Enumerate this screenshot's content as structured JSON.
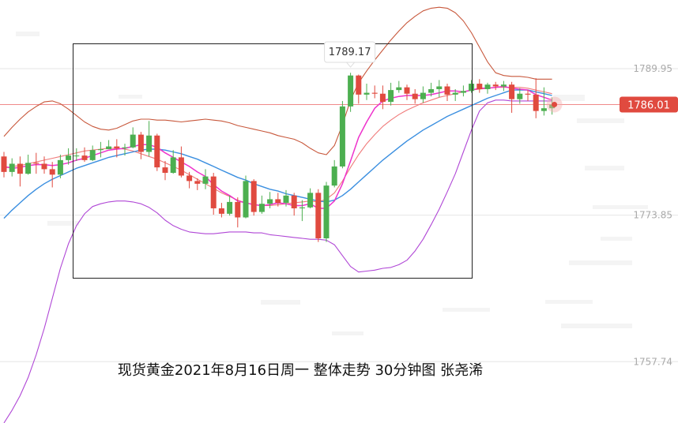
{
  "caption": "现货黄金2021年8月16日周一  整体走势  30分钟图 张尧浠",
  "chart_data": {
    "type": "candlestick",
    "title": "",
    "ylim": [
      1751.0,
      1797.5
    ],
    "yticks": [
      {
        "value": 1789.95,
        "label": "1789.95"
      },
      {
        "value": 1773.85,
        "label": "1773.85"
      },
      {
        "value": 1757.74,
        "label": "1757.74"
      }
    ],
    "current_price": {
      "value": 1786.01,
      "label": "1786.01"
    },
    "peak_label": {
      "value": 1789.17,
      "label": "1789.17",
      "candle_index": 43
    },
    "up_color": "#4caf50",
    "down_color": "#e04a3f",
    "candles": [
      [
        1780.3,
        1778.6,
        1780.8,
        1778.0
      ],
      [
        1778.6,
        1779.5,
        1780.1,
        1778.1
      ],
      [
        1779.5,
        1778.4,
        1780.3,
        1777.0
      ],
      [
        1778.4,
        1779.6,
        1780.5,
        1778.3
      ],
      [
        1779.6,
        1779.5,
        1780.7,
        1778.4
      ],
      [
        1779.5,
        1778.9,
        1780.3,
        1778.4
      ],
      [
        1778.9,
        1778.3,
        1779.7,
        1776.9
      ],
      [
        1778.3,
        1779.9,
        1780.5,
        1777.9
      ],
      [
        1779.9,
        1780.4,
        1781.2,
        1779.4
      ],
      [
        1780.4,
        1780.4,
        1781.2,
        1779.8
      ],
      [
        1780.4,
        1779.9,
        1781.3,
        1779.7
      ],
      [
        1779.9,
        1781.0,
        1781.5,
        1779.8
      ],
      [
        1781.0,
        1781.1,
        1781.9,
        1780.2
      ],
      [
        1781.1,
        1781.4,
        1782.1,
        1781.2
      ],
      [
        1781.4,
        1781.2,
        1782.2,
        1780.2
      ],
      [
        1781.2,
        1781.3,
        1781.7,
        1780.4
      ],
      [
        1781.3,
        1782.7,
        1783.5,
        1781.2
      ],
      [
        1782.7,
        1780.8,
        1783.0,
        1780.0
      ],
      [
        1780.8,
        1782.6,
        1784.2,
        1780.3
      ],
      [
        1782.6,
        1779.1,
        1782.8,
        1778.7
      ],
      [
        1779.1,
        1778.5,
        1779.8,
        1777.7
      ],
      [
        1778.5,
        1780.2,
        1781.0,
        1778.4
      ],
      [
        1780.2,
        1778.2,
        1781.4,
        1778.0
      ],
      [
        1778.2,
        1777.6,
        1778.6,
        1776.8
      ],
      [
        1777.6,
        1777.3,
        1777.9,
        1776.6
      ],
      [
        1777.3,
        1778.1,
        1778.9,
        1776.7
      ],
      [
        1778.1,
        1774.6,
        1778.5,
        1773.9
      ],
      [
        1774.6,
        1774.0,
        1775.2,
        1773.6
      ],
      [
        1774.0,
        1775.3,
        1776.0,
        1773.8
      ],
      [
        1775.3,
        1773.6,
        1775.8,
        1772.5
      ],
      [
        1773.6,
        1777.6,
        1778.2,
        1773.5
      ],
      [
        1777.6,
        1774.2,
        1777.8,
        1773.8
      ],
      [
        1774.2,
        1775.1,
        1776.0,
        1774.0
      ],
      [
        1775.1,
        1775.6,
        1776.4,
        1774.6
      ],
      [
        1775.6,
        1775.2,
        1776.3,
        1774.8
      ],
      [
        1775.2,
        1776.0,
        1776.6,
        1774.8
      ],
      [
        1776.0,
        1774.6,
        1776.3,
        1773.8
      ],
      [
        1774.6,
        1774.7,
        1775.5,
        1773.2
      ],
      [
        1774.7,
        1776.3,
        1776.8,
        1774.6
      ],
      [
        1776.3,
        1771.3,
        1776.7,
        1770.9
      ],
      [
        1771.3,
        1777.1,
        1777.5,
        1770.9
      ],
      [
        1777.1,
        1779.2,
        1779.9,
        1776.9
      ],
      [
        1779.2,
        1785.8,
        1786.4,
        1779.0
      ],
      [
        1785.8,
        1789.2,
        1789.5,
        1785.2
      ],
      [
        1789.2,
        1787.1,
        1789.3,
        1786.1
      ],
      [
        1787.1,
        1787.3,
        1788.3,
        1786.5
      ],
      [
        1787.3,
        1787.2,
        1788.1,
        1786.7
      ],
      [
        1787.2,
        1786.3,
        1788.1,
        1785.5
      ],
      [
        1786.3,
        1787.6,
        1788.4,
        1785.9
      ],
      [
        1787.6,
        1787.9,
        1788.6,
        1787.3
      ],
      [
        1787.9,
        1787.2,
        1788.2,
        1786.5
      ],
      [
        1787.2,
        1786.6,
        1787.7,
        1786.1
      ],
      [
        1786.6,
        1787.3,
        1788.0,
        1786.2
      ],
      [
        1787.3,
        1787.7,
        1788.4,
        1786.9
      ],
      [
        1787.7,
        1788.0,
        1788.7,
        1786.8
      ],
      [
        1788.0,
        1787.1,
        1788.3,
        1786.4
      ],
      [
        1787.1,
        1787.3,
        1787.7,
        1786.4
      ],
      [
        1787.3,
        1787.5,
        1788.1,
        1786.9
      ],
      [
        1787.5,
        1788.3,
        1788.7,
        1787.3
      ],
      [
        1788.3,
        1787.7,
        1788.8,
        1787.3
      ],
      [
        1787.7,
        1788.2,
        1788.4,
        1787.2
      ],
      [
        1788.2,
        1788.0,
        1788.5,
        1787.6
      ],
      [
        1788.0,
        1788.2,
        1788.6,
        1787.5
      ],
      [
        1788.2,
        1786.6,
        1788.5,
        1785.1
      ],
      [
        1786.6,
        1787.2,
        1787.8,
        1786.1
      ],
      [
        1787.2,
        1787.1,
        1787.6,
        1786.4
      ],
      [
        1787.1,
        1785.3,
        1788.9,
        1784.5
      ],
      [
        1785.3,
        1785.6,
        1787.9,
        1784.8
      ],
      [
        1785.6,
        1786.0,
        1786.8,
        1784.9
      ]
    ],
    "ma_short": [
      1779.2,
      1779.0,
      1779.1,
      1779.3,
      1779.4,
      1779.4,
      1779.3,
      1779.4,
      1779.6,
      1779.9,
      1780.1,
      1780.4,
      1780.7,
      1781.0,
      1781.1,
      1781.2,
      1781.4,
      1781.6,
      1781.6,
      1781.3,
      1780.7,
      1780.2,
      1779.7,
      1779.2,
      1778.6,
      1778.1,
      1777.2,
      1776.5,
      1776.0,
      1775.4,
      1775.2,
      1775.0,
      1774.9,
      1775.0,
      1775.2,
      1775.1,
      1774.9,
      1774.9,
      1775.1,
      1774.6,
      1774.6,
      1775.4,
      1777.3,
      1779.8,
      1782.4,
      1784.1,
      1785.6,
      1786.4,
      1786.7,
      1786.9,
      1787.0,
      1787.0,
      1787.0,
      1787.1,
      1787.3,
      1787.5,
      1787.5,
      1787.4,
      1787.6,
      1787.8,
      1787.8,
      1787.9,
      1788.0,
      1787.8,
      1787.7,
      1787.6,
      1787.1,
      1786.8,
      1786.5
    ],
    "ma_long": [
      1773.5,
      1774.4,
      1775.2,
      1776.0,
      1776.7,
      1777.3,
      1777.8,
      1778.2,
      1778.6,
      1779.0,
      1779.3,
      1779.6,
      1779.9,
      1780.2,
      1780.4,
      1780.6,
      1780.8,
      1781.0,
      1781.1,
      1781.1,
      1781.0,
      1780.8,
      1780.6,
      1780.3,
      1780.0,
      1779.6,
      1779.2,
      1778.8,
      1778.4,
      1778.0,
      1777.7,
      1777.3,
      1777.0,
      1776.7,
      1776.5,
      1776.2,
      1776.0,
      1775.8,
      1775.6,
      1775.4,
      1775.3,
      1775.5,
      1776.0,
      1776.7,
      1777.5,
      1778.3,
      1779.1,
      1779.9,
      1780.6,
      1781.3,
      1782.0,
      1782.6,
      1783.2,
      1783.7,
      1784.2,
      1784.7,
      1785.1,
      1785.5,
      1785.9,
      1786.3,
      1786.7,
      1787.0,
      1787.3,
      1787.6,
      1787.6,
      1787.6,
      1787.4,
      1787.2,
      1787.0
    ],
    "boll_mid": [
      1779.0,
      1779.2,
      1779.3,
      1779.5,
      1779.7,
      1779.9,
      1780.1,
      1780.3,
      1780.5,
      1780.7,
      1780.9,
      1781.0,
      1781.1,
      1781.2,
      1781.2,
      1781.1,
      1780.9,
      1780.6,
      1780.3,
      1780.0,
      1779.6,
      1779.2,
      1778.8,
      1778.3,
      1777.8,
      1777.3,
      1776.8,
      1776.3,
      1775.9,
      1775.5,
      1775.2,
      1775.0,
      1774.9,
      1774.9,
      1775.0,
      1775.1,
      1775.2,
      1775.3,
      1775.4,
      1775.3,
      1775.6,
      1776.3,
      1777.6,
      1779.1,
      1780.5,
      1781.7,
      1782.7,
      1783.6,
      1784.3,
      1784.9,
      1785.4,
      1785.8,
      1786.2,
      1786.5,
      1786.8,
      1787.0,
      1787.2,
      1787.4,
      1787.6,
      1787.7,
      1787.8,
      1787.9,
      1787.9,
      1787.9,
      1787.9,
      1787.8,
      1787.6,
      1787.4,
      1787.2
    ],
    "boll_upper": [
      1782.5,
      1783.5,
      1784.4,
      1785.2,
      1785.8,
      1786.3,
      1786.4,
      1786.1,
      1785.5,
      1784.8,
      1784.1,
      1783.6,
      1783.3,
      1783.2,
      1783.4,
      1783.8,
      1784.2,
      1784.4,
      1784.4,
      1784.3,
      1784.3,
      1784.2,
      1784.1,
      1784.2,
      1784.3,
      1784.4,
      1784.3,
      1784.2,
      1784.0,
      1783.7,
      1783.5,
      1783.3,
      1783.1,
      1782.9,
      1782.6,
      1782.4,
      1782.2,
      1781.8,
      1781.2,
      1780.7,
      1780.5,
      1781.5,
      1783.8,
      1786.5,
      1788.4,
      1789.7,
      1790.9,
      1792.0,
      1793.1,
      1794.1,
      1795.0,
      1795.7,
      1796.3,
      1796.6,
      1796.7,
      1796.6,
      1796.1,
      1795.2,
      1793.9,
      1792.3,
      1790.7,
      1789.5,
      1789.2,
      1789.1,
      1789.1,
      1789.0,
      1788.8,
      1788.8,
      1788.8
    ],
    "boll_lower": [
      1751.0,
      1752.4,
      1754.0,
      1756.0,
      1758.5,
      1761.4,
      1764.7,
      1768.0,
      1770.7,
      1772.7,
      1774.0,
      1774.8,
      1775.1,
      1775.3,
      1775.4,
      1775.4,
      1775.3,
      1775.1,
      1774.7,
      1774.1,
      1773.3,
      1772.7,
      1772.3,
      1772.0,
      1771.9,
      1771.8,
      1771.8,
      1771.9,
      1772.0,
      1772.0,
      1772.0,
      1771.9,
      1771.9,
      1771.7,
      1771.6,
      1771.5,
      1771.4,
      1771.3,
      1771.2,
      1771.2,
      1771.1,
      1770.6,
      1769.4,
      1768.2,
      1767.6,
      1767.7,
      1767.8,
      1768.0,
      1768.1,
      1768.4,
      1768.9,
      1769.9,
      1771.2,
      1772.8,
      1774.5,
      1776.4,
      1778.4,
      1780.8,
      1783.2,
      1785.3,
      1786.2,
      1786.5,
      1786.5,
      1786.4,
      1786.4,
      1786.4,
      1786.4,
      1786.4,
      1786.4
    ]
  }
}
